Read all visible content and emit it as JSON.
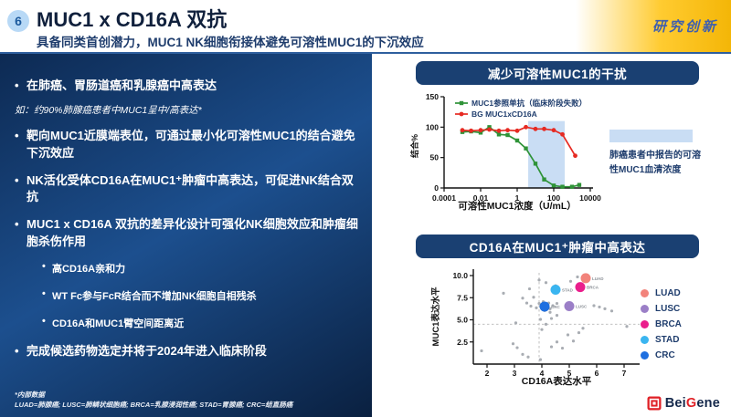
{
  "header": {
    "badge": "6",
    "title": "MUC1 x CD16A 双抗",
    "subtitle": "具备同类首创潜力，MUC1 NK细胞衔接体避免可溶性MUC1的下沉效应",
    "corner_tag": "研究创新"
  },
  "left_panel": {
    "bullets": [
      {
        "level": 1,
        "text": "在肺癌、胃肠道癌和乳腺癌中高表达"
      },
      {
        "level": 0,
        "style": "note",
        "text": "如：约90%肺腺癌患者中MUC1呈中/高表达*"
      },
      {
        "level": 1,
        "text": "靶向MUC1近膜端表位，可通过最小化可溶性MUC1的结合避免下沉效应"
      },
      {
        "level": 1,
        "text": "NK活化受体CD16A在MUC1⁺肿瘤中高表达，可促进NK结合双抗"
      },
      {
        "level": 1,
        "text": "MUC1 x CD16A 双抗的差异化设计可强化NK细胞效应和肿瘤细胞杀伤作用"
      },
      {
        "level": 2,
        "text": "高CD16A亲和力"
      },
      {
        "level": 2,
        "text": "WT Fc参与FcR结合而不增加NK细胞自相残杀"
      },
      {
        "level": 2,
        "text": "CD16A和MUC1臂空间距离近"
      },
      {
        "level": 1,
        "text": "完成候选药物选定并将于2024年进入临床阶段"
      }
    ],
    "footnote_line1": "*内部数据",
    "footnote_line2": "LUAD=肺腺癌; LUSC=肺鳞状细胞癌; BRCA=乳腺浸润性癌; STAD=胃腺癌; CRC=结直肠癌"
  },
  "chart_data": [
    {
      "type": "line",
      "title": "减少可溶性MUC1的干扰",
      "xlabel": "可溶性MUC1浓度（U/mL）",
      "ylabel": "结合%",
      "x_scale": "log10",
      "xlim": [
        0.0001,
        10000
      ],
      "ylim": [
        0,
        150
      ],
      "x_ticks": [
        0.0001,
        0.01,
        1,
        100,
        10000
      ],
      "y_ticks": [
        0,
        50,
        100,
        150
      ],
      "shaded_region": {
        "x_from": 4,
        "x_to": 400,
        "y_from": 0,
        "y_to": 110,
        "color": "#c9ddf4",
        "label": "肺癌患者中报告的可溶性MUC1血清浓度"
      },
      "series": [
        {
          "name": "MUC1参照单抗（临床阶段失败）",
          "color": "#2f9338",
          "marker": "square",
          "points": [
            [
              0.001,
              92
            ],
            [
              0.003,
              93
            ],
            [
              0.01,
              91
            ],
            [
              0.03,
              100
            ],
            [
              0.1,
              88
            ],
            [
              0.3,
              87
            ],
            [
              1,
              78
            ],
            [
              3,
              65
            ],
            [
              10,
              40
            ],
            [
              30,
              14
            ],
            [
              100,
              4
            ],
            [
              300,
              2
            ],
            [
              1000,
              2
            ],
            [
              2500,
              5
            ]
          ]
        },
        {
          "name": "BG MUC1xCD16A",
          "color": "#e62a22",
          "marker": "circle",
          "points": [
            [
              0.001,
              95
            ],
            [
              0.003,
              94
            ],
            [
              0.01,
              95
            ],
            [
              0.03,
              96
            ],
            [
              0.1,
              94
            ],
            [
              0.3,
              95
            ],
            [
              1,
              94
            ],
            [
              3,
              100
            ],
            [
              10,
              97
            ],
            [
              30,
              97
            ],
            [
              100,
              95
            ],
            [
              300,
              88
            ],
            [
              1500,
              53
            ]
          ]
        }
      ],
      "legend_position": "top-left-inside"
    },
    {
      "type": "scatter",
      "title": "CD16A在MUC1⁺肿瘤中高表达",
      "xlabel": "CD16A表达水平",
      "ylabel": "MUC1表达水平",
      "xlim": [
        1.5,
        7.5
      ],
      "ylim": [
        0,
        10.5
      ],
      "x_ticks": [
        2,
        3,
        4,
        5,
        6,
        7
      ],
      "y_tick_labels": [
        "2.5",
        "5.0",
        "7.5",
        "10.0"
      ],
      "y_tick_values": [
        2.5,
        5.0,
        7.5,
        10.0
      ],
      "dashed_vline_x": 3.9,
      "dashed_hline_y": 4.5,
      "highlighted": [
        {
          "label": "LUAD",
          "x": 5.6,
          "y": 9.7,
          "color": "#f2837b"
        },
        {
          "label": "BRCA",
          "x": 5.4,
          "y": 8.7,
          "color": "#ea1e8c"
        },
        {
          "label": "STAD",
          "x": 4.5,
          "y": 8.4,
          "color": "#3ab5f0"
        },
        {
          "label": "LUSC",
          "x": 5.0,
          "y": 6.55,
          "color": "#9b7fc7"
        },
        {
          "label": "CRC",
          "x": 4.1,
          "y": 6.5,
          "color": "#1e6fe0"
        }
      ],
      "background_points": [
        [
          3.9,
          9.5
        ],
        [
          4.15,
          9.2
        ],
        [
          4.5,
          8.85
        ],
        [
          5.05,
          9.35
        ],
        [
          5.3,
          9.85
        ],
        [
          3.55,
          8.5
        ],
        [
          2.6,
          8.0
        ],
        [
          3.3,
          7.45
        ],
        [
          3.7,
          7.55
        ],
        [
          3.45,
          6.9
        ],
        [
          3.6,
          6.55
        ],
        [
          3.8,
          6.35
        ],
        [
          3.9,
          6.85
        ],
        [
          4.05,
          7.05
        ],
        [
          4.25,
          6.9
        ],
        [
          4.4,
          6.6
        ],
        [
          4.55,
          6.85
        ],
        [
          4.3,
          6.25
        ],
        [
          4.1,
          6.05
        ],
        [
          4.3,
          5.85
        ],
        [
          4.55,
          5.5
        ],
        [
          4.35,
          5.15
        ],
        [
          5.9,
          6.6
        ],
        [
          6.1,
          6.45
        ],
        [
          6.3,
          6.25
        ],
        [
          6.55,
          6.0
        ],
        [
          3.05,
          4.65
        ],
        [
          3.95,
          5.05
        ],
        [
          7.1,
          4.25
        ],
        [
          1.8,
          1.5
        ],
        [
          2.95,
          2.3
        ],
        [
          3.1,
          1.85
        ],
        [
          3.3,
          1.1
        ],
        [
          3.5,
          0.8
        ],
        [
          3.95,
          0.5
        ],
        [
          4.35,
          1.95
        ],
        [
          4.55,
          2.5
        ],
        [
          4.75,
          1.8
        ],
        [
          4.95,
          3.3
        ],
        [
          5.15,
          2.6
        ],
        [
          5.35,
          3.55
        ],
        [
          5.5,
          4.05
        ],
        [
          4.15,
          4.5
        ],
        [
          4.0,
          3.9
        ]
      ],
      "legend": [
        {
          "label": "LUAD",
          "color": "#f2837b"
        },
        {
          "label": "LUSC",
          "color": "#9b7fc7"
        },
        {
          "label": "BRCA",
          "color": "#ea1e8c"
        },
        {
          "label": "STAD",
          "color": "#3ab5f0"
        },
        {
          "label": "CRC",
          "color": "#1e6fe0"
        }
      ],
      "legend_position": "right"
    }
  ],
  "logo": {
    "text_pre": "Bei",
    "text_accent": "G",
    "text_post": "ene"
  },
  "colors": {
    "header_bar": "#1a4072",
    "panel_top": "#0d2a53",
    "panel_mid": "#1c4f8e",
    "panel_bottom": "#0a2040",
    "accent_gold": "#f4b607",
    "shaded_blue": "#c9ddf4"
  }
}
